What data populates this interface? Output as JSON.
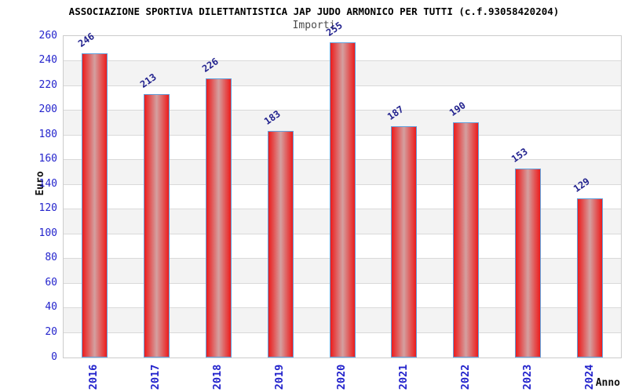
{
  "chart_data": {
    "type": "bar",
    "title": "ASSOCIAZIONE SPORTIVA DILETTANTISTICA JAP JUDO ARMONICO PER TUTTI (c.f.93058420204)",
    "subtitle": "Importi",
    "xlabel": "Anno",
    "ylabel": "Euro",
    "categories": [
      "2016",
      "2017",
      "2018",
      "2019",
      "2020",
      "2021",
      "2022",
      "2023",
      "2024"
    ],
    "values": [
      246,
      213,
      226,
      183,
      255,
      187,
      190,
      153,
      129
    ],
    "ylim": [
      0,
      260
    ],
    "ytick_step": 20,
    "grid": true,
    "legend": "none",
    "background_stripes": true,
    "colors": {
      "bar_edge": "#ec1c1c",
      "bar_center": "#d4a0a0",
      "bar_border": "#62a0dc",
      "tick_label": "#2323cc",
      "value_label": "#22228e",
      "title": "#000000",
      "subtitle": "#4a4a4a",
      "axis_title": "#111111",
      "stripe": "#f3f3f3",
      "gridline": "#d9d9d9",
      "frame": "#cccccc"
    }
  }
}
